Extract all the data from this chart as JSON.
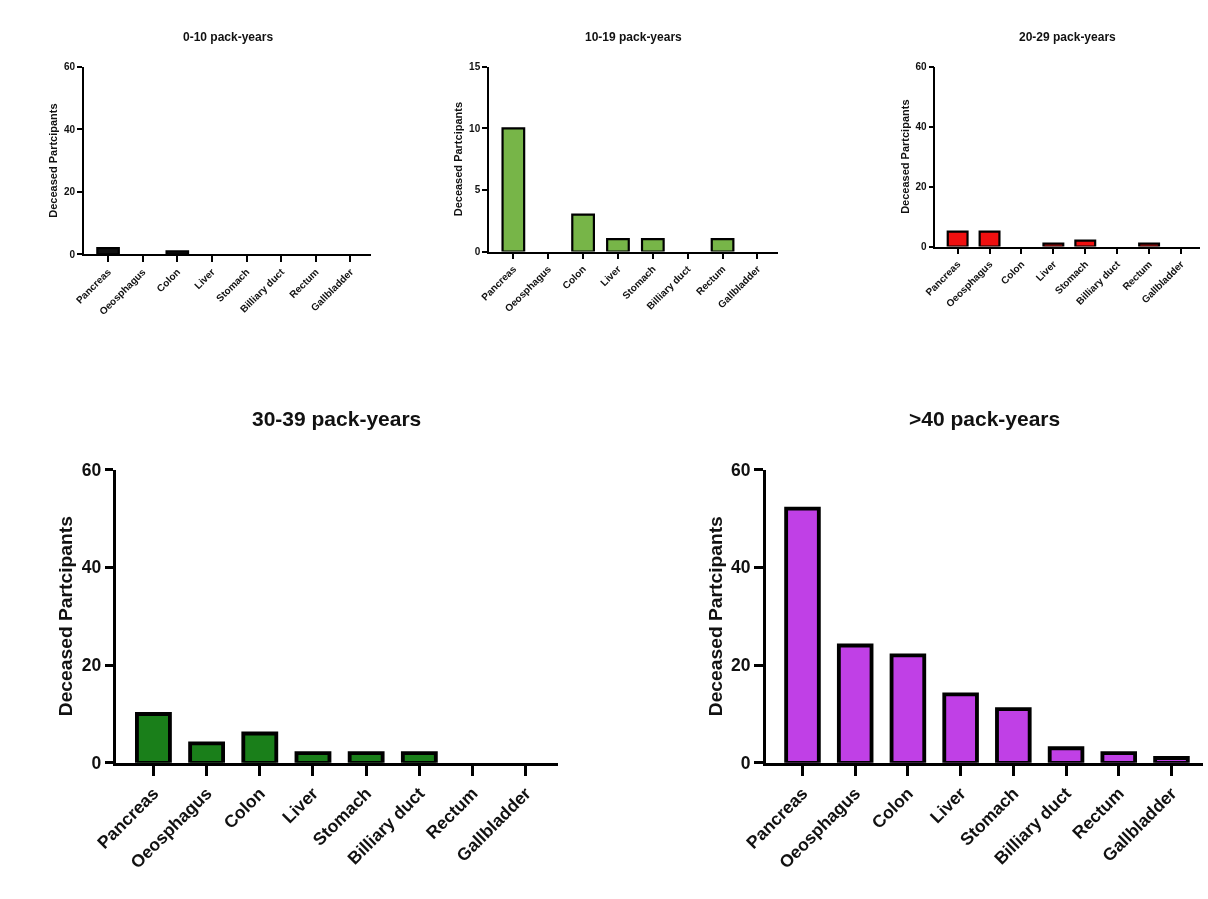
{
  "chart_data": [
    {
      "type": "bar",
      "title": "0-10 pack-years",
      "ylabel": "Deceased Partcipants",
      "categories": [
        "Pancreas",
        "Oeosphagus",
        "Colon",
        "Liver",
        "Stomach",
        "Billiary duct",
        "Rectum",
        "Gallbladder"
      ],
      "values": [
        2,
        0,
        1,
        0,
        0,
        0,
        0,
        0
      ],
      "color": "#111111",
      "ylim": [
        0,
        60
      ],
      "yticks": [
        0,
        20,
        40,
        60
      ]
    },
    {
      "type": "bar",
      "title": "10-19 pack-years",
      "ylabel": "Deceased Partcipants",
      "categories": [
        "Pancreas",
        "Oeosphagus",
        "Colon",
        "Liver",
        "Stomach",
        "Billiary duct",
        "Rectum",
        "Gallbladder"
      ],
      "values": [
        10,
        0,
        3,
        1,
        1,
        0,
        1,
        0
      ],
      "color": "#77b548",
      "ylim": [
        0,
        15
      ],
      "yticks": [
        0,
        5,
        10,
        15
      ]
    },
    {
      "type": "bar",
      "title": "20-29 pack-years",
      "ylabel": "Deceased Partcipants",
      "categories": [
        "Pancreas",
        "Oeosphagus",
        "Colon",
        "Liver",
        "Stomach",
        "Billiary duct",
        "Rectum",
        "Gallbladder"
      ],
      "values": [
        5,
        5,
        0,
        1,
        2,
        0,
        1,
        0
      ],
      "color": "#f01010",
      "ylim": [
        0,
        60
      ],
      "yticks": [
        0,
        20,
        40,
        60
      ]
    },
    {
      "type": "bar",
      "title": "30-39 pack-years",
      "ylabel": "Deceased Partcipants",
      "categories": [
        "Pancreas",
        "Oeosphagus",
        "Colon",
        "Liver",
        "Stomach",
        "Billiary duct",
        "Rectum",
        "Gallbladder"
      ],
      "values": [
        10,
        4,
        6,
        2,
        2,
        2,
        0,
        0
      ],
      "color": "#1a7f1a",
      "ylim": [
        0,
        60
      ],
      "yticks": [
        0,
        20,
        40,
        60
      ]
    },
    {
      "type": "bar",
      "title": ">40 pack-years",
      "ylabel": "Deceased Partcipants",
      "categories": [
        "Pancreas",
        "Oeosphagus",
        "Colon",
        "Liver",
        "Stomach",
        "Billiary duct",
        "Rectum",
        "Gallbladder"
      ],
      "values": [
        52,
        24,
        22,
        14,
        11,
        3,
        2,
        1
      ],
      "color": "#c040e6",
      "ylim": [
        0,
        60
      ],
      "yticks": [
        0,
        20,
        40,
        60
      ]
    }
  ]
}
